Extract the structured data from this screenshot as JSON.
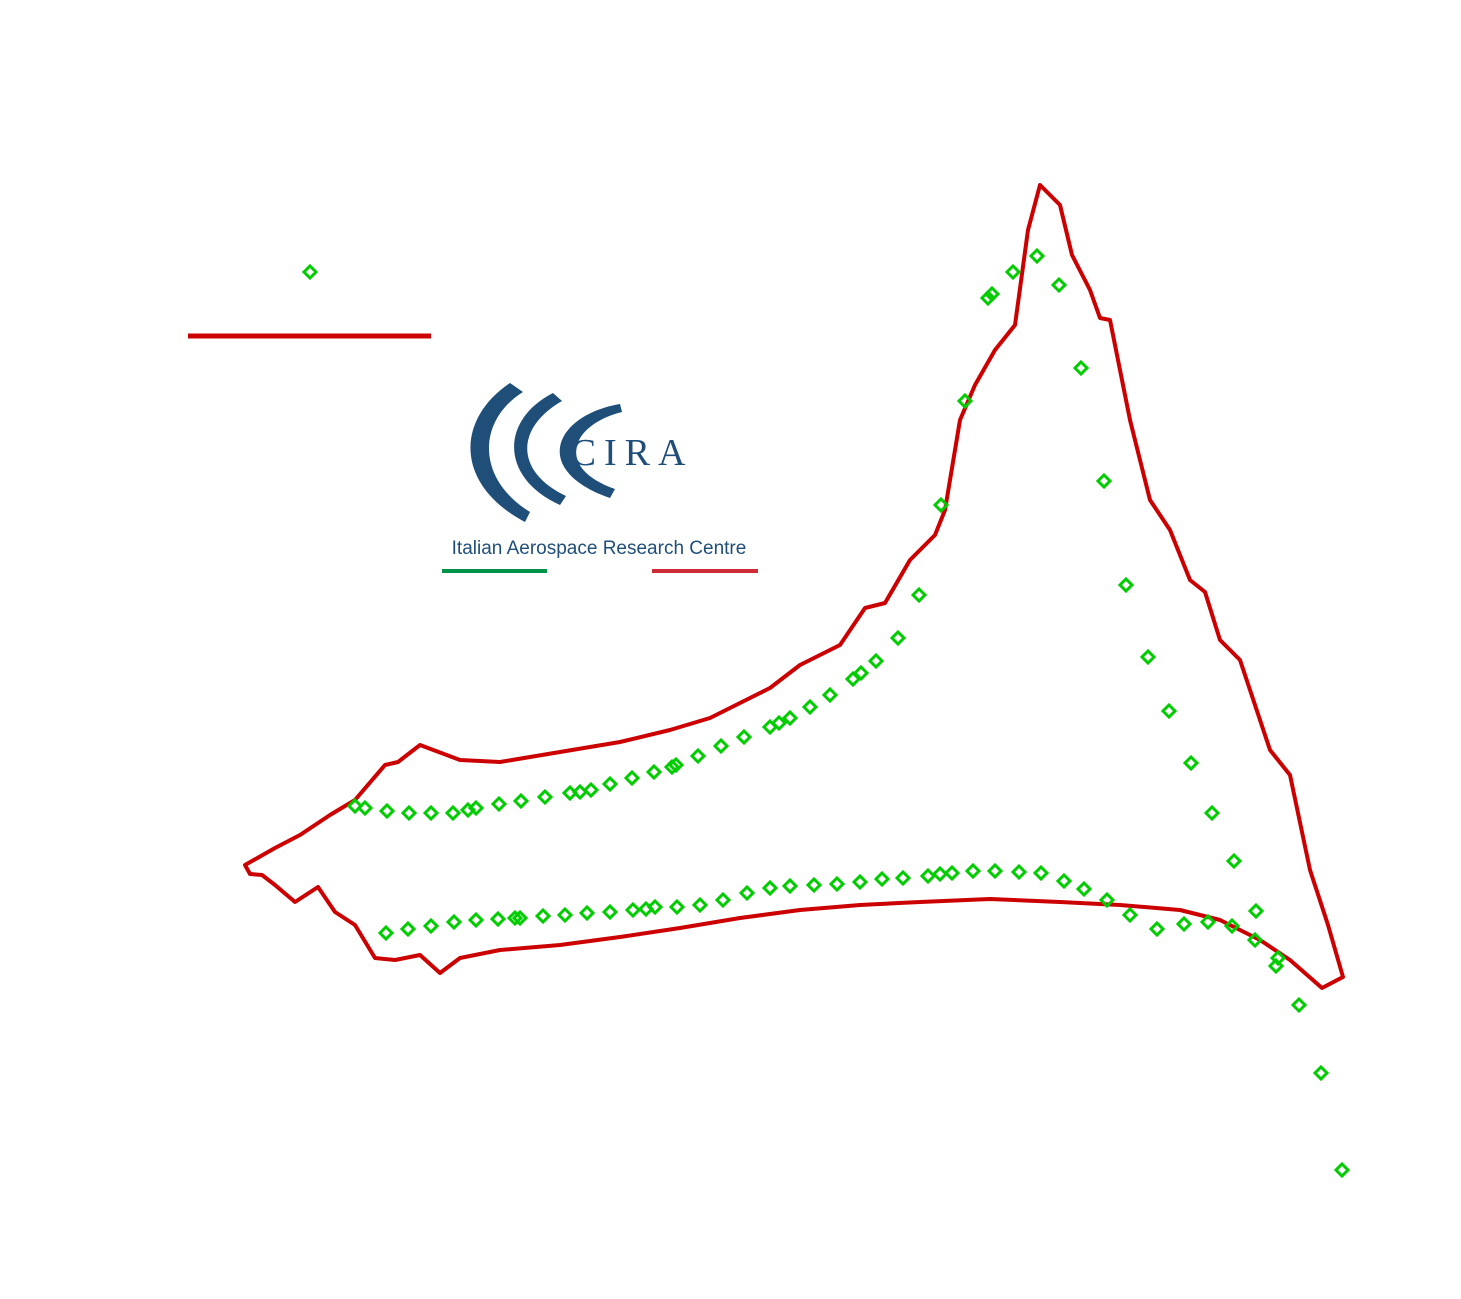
{
  "chart_data": {
    "type": "scatter",
    "xlim": [
      0,
      1100
    ],
    "ylim": [
      0,
      1050
    ],
    "legend": "upper left",
    "series": [
      {
        "type": "line",
        "color": "#cc0000",
        "x": [
          0,
          30,
          55,
          85,
          110,
          140,
          153,
          175,
          215,
          255,
          315,
          375,
          425,
          465,
          495,
          525,
          555,
          595,
          620,
          640,
          665,
          690,
          700,
          715,
          730,
          750,
          770,
          783,
          795,
          815,
          827,
          845,
          855,
          865,
          885,
          905,
          925,
          945,
          960,
          975,
          995,
          1025,
          1045,
          1065,
          1083,
          1098,
          1077,
          1045,
          1015,
          975,
          935,
          875,
          815,
          745,
          675,
          615,
          555,
          495,
          435,
          375,
          315,
          255,
          215,
          195,
          175,
          150,
          130,
          110,
          90,
          73,
          50,
          30,
          17,
          5
        ],
        "y": [
          335,
          352,
          365,
          385,
          400,
          435,
          438,
          455,
          440,
          438,
          448,
          458,
          470,
          482,
          497,
          512,
          535,
          555,
          592,
          597,
          640,
          665,
          690,
          780,
          815,
          850,
          875,
          970,
          1015,
          995,
          945,
          910,
          882,
          880,
          780,
          700,
          670,
          620,
          608,
          560,
          540,
          450,
          425,
          330,
          275,
          223,
          212,
          240,
          260,
          280,
          290,
          295,
          298,
          301,
          298,
          295,
          290,
          282,
          272,
          263,
          255,
          250,
          242,
          227,
          245,
          240,
          242,
          275,
          288,
          313,
          298,
          315,
          325,
          326
        ]
      },
      {
        "type": "scatter",
        "color": "#00cc00",
        "x": [
          110,
          120,
          142,
          164,
          186,
          208,
          223,
          231,
          254,
          276,
          300,
          325,
          335,
          346,
          365,
          387,
          409,
          427,
          431,
          453,
          476,
          499,
          525,
          534,
          545,
          565,
          585,
          608,
          616,
          631,
          653,
          674,
          696,
          720,
          743,
          747,
          768,
          792,
          814,
          836,
          859,
          881,
          903,
          924,
          946,
          967,
          989,
          1011,
          1033,
          1031,
          1054,
          1076,
          1097,
          141,
          163,
          186,
          209,
          231,
          253,
          270,
          275,
          298,
          320,
          342,
          365,
          388,
          401,
          410,
          432,
          455,
          478,
          502,
          525,
          545,
          569,
          592,
          615,
          637,
          658,
          683,
          695,
          707,
          728,
          750,
          774,
          796,
          819,
          839,
          862,
          885,
          912,
          939,
          963,
          987,
          1010
        ],
        "y": [
          394,
          392,
          389,
          387,
          387,
          387,
          390,
          392,
          396,
          399,
          403,
          407,
          408,
          410,
          416,
          422,
          428,
          433,
          435,
          444,
          454,
          463,
          473,
          477,
          482,
          493,
          505,
          521,
          527,
          539,
          562,
          605,
          695,
          799,
          902,
          906,
          928,
          944,
          915,
          832,
          719,
          615,
          543,
          489,
          437,
          387,
          339,
          289,
          242,
          234,
          195,
          127,
          30,
          267,
          271,
          274,
          278,
          280,
          281,
          282,
          282,
          284,
          285,
          287,
          288,
          290,
          291,
          293,
          293,
          295,
          300,
          307,
          312,
          314,
          315,
          316,
          318,
          321,
          322,
          324,
          326,
          327,
          329,
          329,
          328,
          327,
          319,
          311,
          300,
          285,
          271,
          276,
          278,
          274,
          260
        ]
      }
    ]
  },
  "logo": {
    "name": "CIRA",
    "subtitle": "Italian Aerospace Research Centre"
  }
}
